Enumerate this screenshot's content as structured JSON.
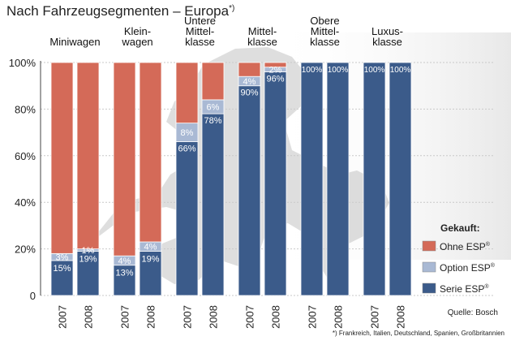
{
  "chart_data": {
    "type": "bar",
    "stacked": true,
    "title": "Nach Fahrzeugsegmenten – Europa",
    "title_footnote_mark": "*)",
    "ylim": [
      0,
      100
    ],
    "y_ticks": [
      "0",
      "20%",
      "40%",
      "60%",
      "80%",
      "100%"
    ],
    "groups": [
      {
        "label": [
          "Miniwagen"
        ],
        "years": [
          "2007",
          "2008"
        ]
      },
      {
        "label": [
          "Klein-",
          "wagen"
        ],
        "years": [
          "2007",
          "2008"
        ]
      },
      {
        "label": [
          "Untere",
          "Mittel-",
          "klasse"
        ],
        "years": [
          "2007",
          "2008"
        ]
      },
      {
        "label": [
          "Mittel-",
          "klasse"
        ],
        "years": [
          "2007",
          "2008"
        ]
      },
      {
        "label": [
          "Obere",
          "Mittel-",
          "klasse"
        ],
        "years": [
          "2007",
          "2008"
        ]
      },
      {
        "label": [
          "Luxus-",
          "klasse"
        ],
        "years": [
          "2007",
          "2008"
        ]
      }
    ],
    "series": [
      {
        "name": "Serie ESP",
        "color": "#3b5b8a",
        "values": [
          15,
          19,
          13,
          19,
          66,
          78,
          90,
          96,
          100,
          100,
          100,
          100
        ]
      },
      {
        "name": "Option ESP",
        "color": "#a9b9d4",
        "values": [
          3,
          1,
          4,
          4,
          8,
          6,
          4,
          2,
          0,
          0,
          0,
          0
        ]
      },
      {
        "name": "Ohne ESP",
        "color": "#d46a58",
        "values": [
          82,
          80,
          83,
          77,
          26,
          16,
          6,
          2,
          0,
          0,
          0,
          0
        ]
      }
    ],
    "data_labels": [
      {
        "bar": 0,
        "text": "15%",
        "series": "Serie ESP"
      },
      {
        "bar": 0,
        "text": "3%",
        "series": "Option ESP"
      },
      {
        "bar": 1,
        "text": "19%",
        "series": "Serie ESP"
      },
      {
        "bar": 1,
        "text": "1%",
        "series": "Option ESP"
      },
      {
        "bar": 2,
        "text": "13%",
        "series": "Serie ESP"
      },
      {
        "bar": 2,
        "text": "4%",
        "series": "Option ESP"
      },
      {
        "bar": 3,
        "text": "19%",
        "series": "Serie ESP"
      },
      {
        "bar": 3,
        "text": "4%",
        "series": "Option ESP"
      },
      {
        "bar": 4,
        "text": "66%",
        "series": "Serie ESP"
      },
      {
        "bar": 4,
        "text": "8%",
        "series": "Option ESP"
      },
      {
        "bar": 5,
        "text": "78%",
        "series": "Serie ESP"
      },
      {
        "bar": 5,
        "text": "6%",
        "series": "Option ESP"
      },
      {
        "bar": 6,
        "text": "90%",
        "series": "Serie ESP"
      },
      {
        "bar": 6,
        "text": "4%",
        "series": "Option ESP"
      },
      {
        "bar": 7,
        "text": "96%",
        "series": "Serie ESP"
      },
      {
        "bar": 7,
        "text": "2%",
        "series": "Option ESP"
      },
      {
        "bar": 8,
        "text": "100%",
        "series": "Serie ESP"
      },
      {
        "bar": 9,
        "text": "100%",
        "series": "Serie ESP"
      },
      {
        "bar": 10,
        "text": "100%",
        "series": "Serie ESP"
      },
      {
        "bar": 11,
        "text": "100%",
        "series": "Serie ESP"
      }
    ],
    "legend": {
      "title": "Gekauft:",
      "placement": "bottom-right",
      "entries": [
        {
          "label": "Ohne ESP",
          "sup": "®",
          "color": "#d46a58"
        },
        {
          "label": "Option ESP",
          "sup": "®",
          "color": "#a9b9d4"
        },
        {
          "label": "Serie ESP",
          "sup": "®",
          "color": "#3b5b8a"
        }
      ]
    },
    "source": "Quelle: Bosch",
    "footnote": "*) Frankreich, Italien, Deutschland, Spanien, Großbritannien"
  }
}
